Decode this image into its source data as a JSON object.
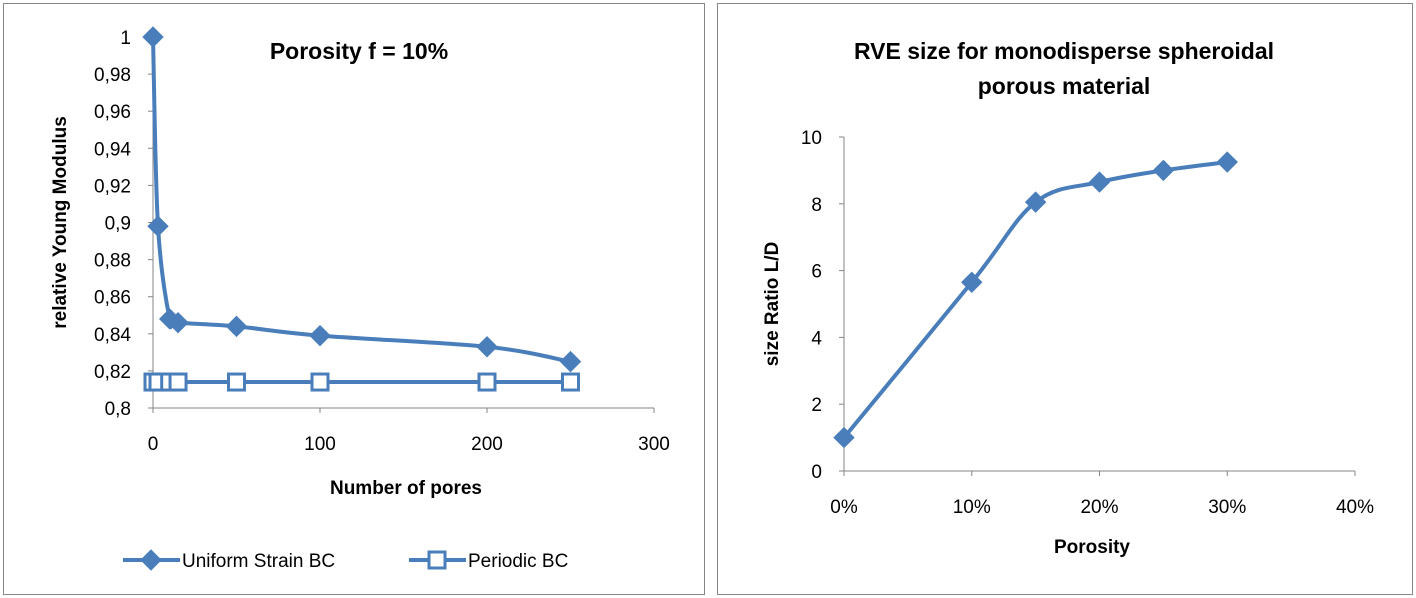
{
  "chart_data": [
    {
      "type": "line",
      "title": "Porosity f = 10%",
      "xlabel": "Number of pores",
      "ylabel": "relative Young Modulus",
      "xlim": [
        0,
        300
      ],
      "ylim": [
        0.8,
        1.0
      ],
      "xticks": [
        "0",
        "100",
        "200",
        "300"
      ],
      "yticks": [
        "0,8",
        "0,82",
        "0,84",
        "0,86",
        "0,88",
        "0,9",
        "0,92",
        "0,94",
        "0,96",
        "0,98",
        "1"
      ],
      "grid": false,
      "legend": "bottom",
      "series": [
        {
          "name": "Uniform Strain BC",
          "color": "#4a7ebb",
          "marker": "filled-diamond",
          "x": [
            0,
            3,
            10,
            15,
            50,
            100,
            200,
            250
          ],
          "y": [
            1.0,
            0.898,
            0.848,
            0.846,
            0.844,
            0.839,
            0.833,
            0.825
          ]
        },
        {
          "name": "Periodic  BC",
          "color": "#4a7ebb",
          "marker": "open-square",
          "x": [
            0,
            3,
            10,
            15,
            50,
            100,
            200,
            250
          ],
          "y": [
            0.814,
            0.814,
            0.814,
            0.814,
            0.814,
            0.814,
            0.814,
            0.814
          ]
        }
      ]
    },
    {
      "type": "line",
      "title": [
        "RVE size for monodisperse spheroidal",
        "porous material"
      ],
      "xlabel": "Porosity",
      "ylabel": "size Ratio L/D",
      "xlim": [
        0,
        40
      ],
      "ylim": [
        0,
        10
      ],
      "xticks": [
        "0%",
        "10%",
        "20%",
        "30%",
        "40%"
      ],
      "yticks": [
        "0",
        "2",
        "4",
        "6",
        "8",
        "10"
      ],
      "grid": false,
      "legend": "none",
      "series": [
        {
          "color": "#4a7ebb",
          "marker": "filled-diamond",
          "x": [
            0,
            10,
            15,
            20,
            25,
            30
          ],
          "y": [
            1.0,
            5.65,
            8.05,
            8.65,
            9.0,
            9.25
          ]
        }
      ]
    }
  ]
}
